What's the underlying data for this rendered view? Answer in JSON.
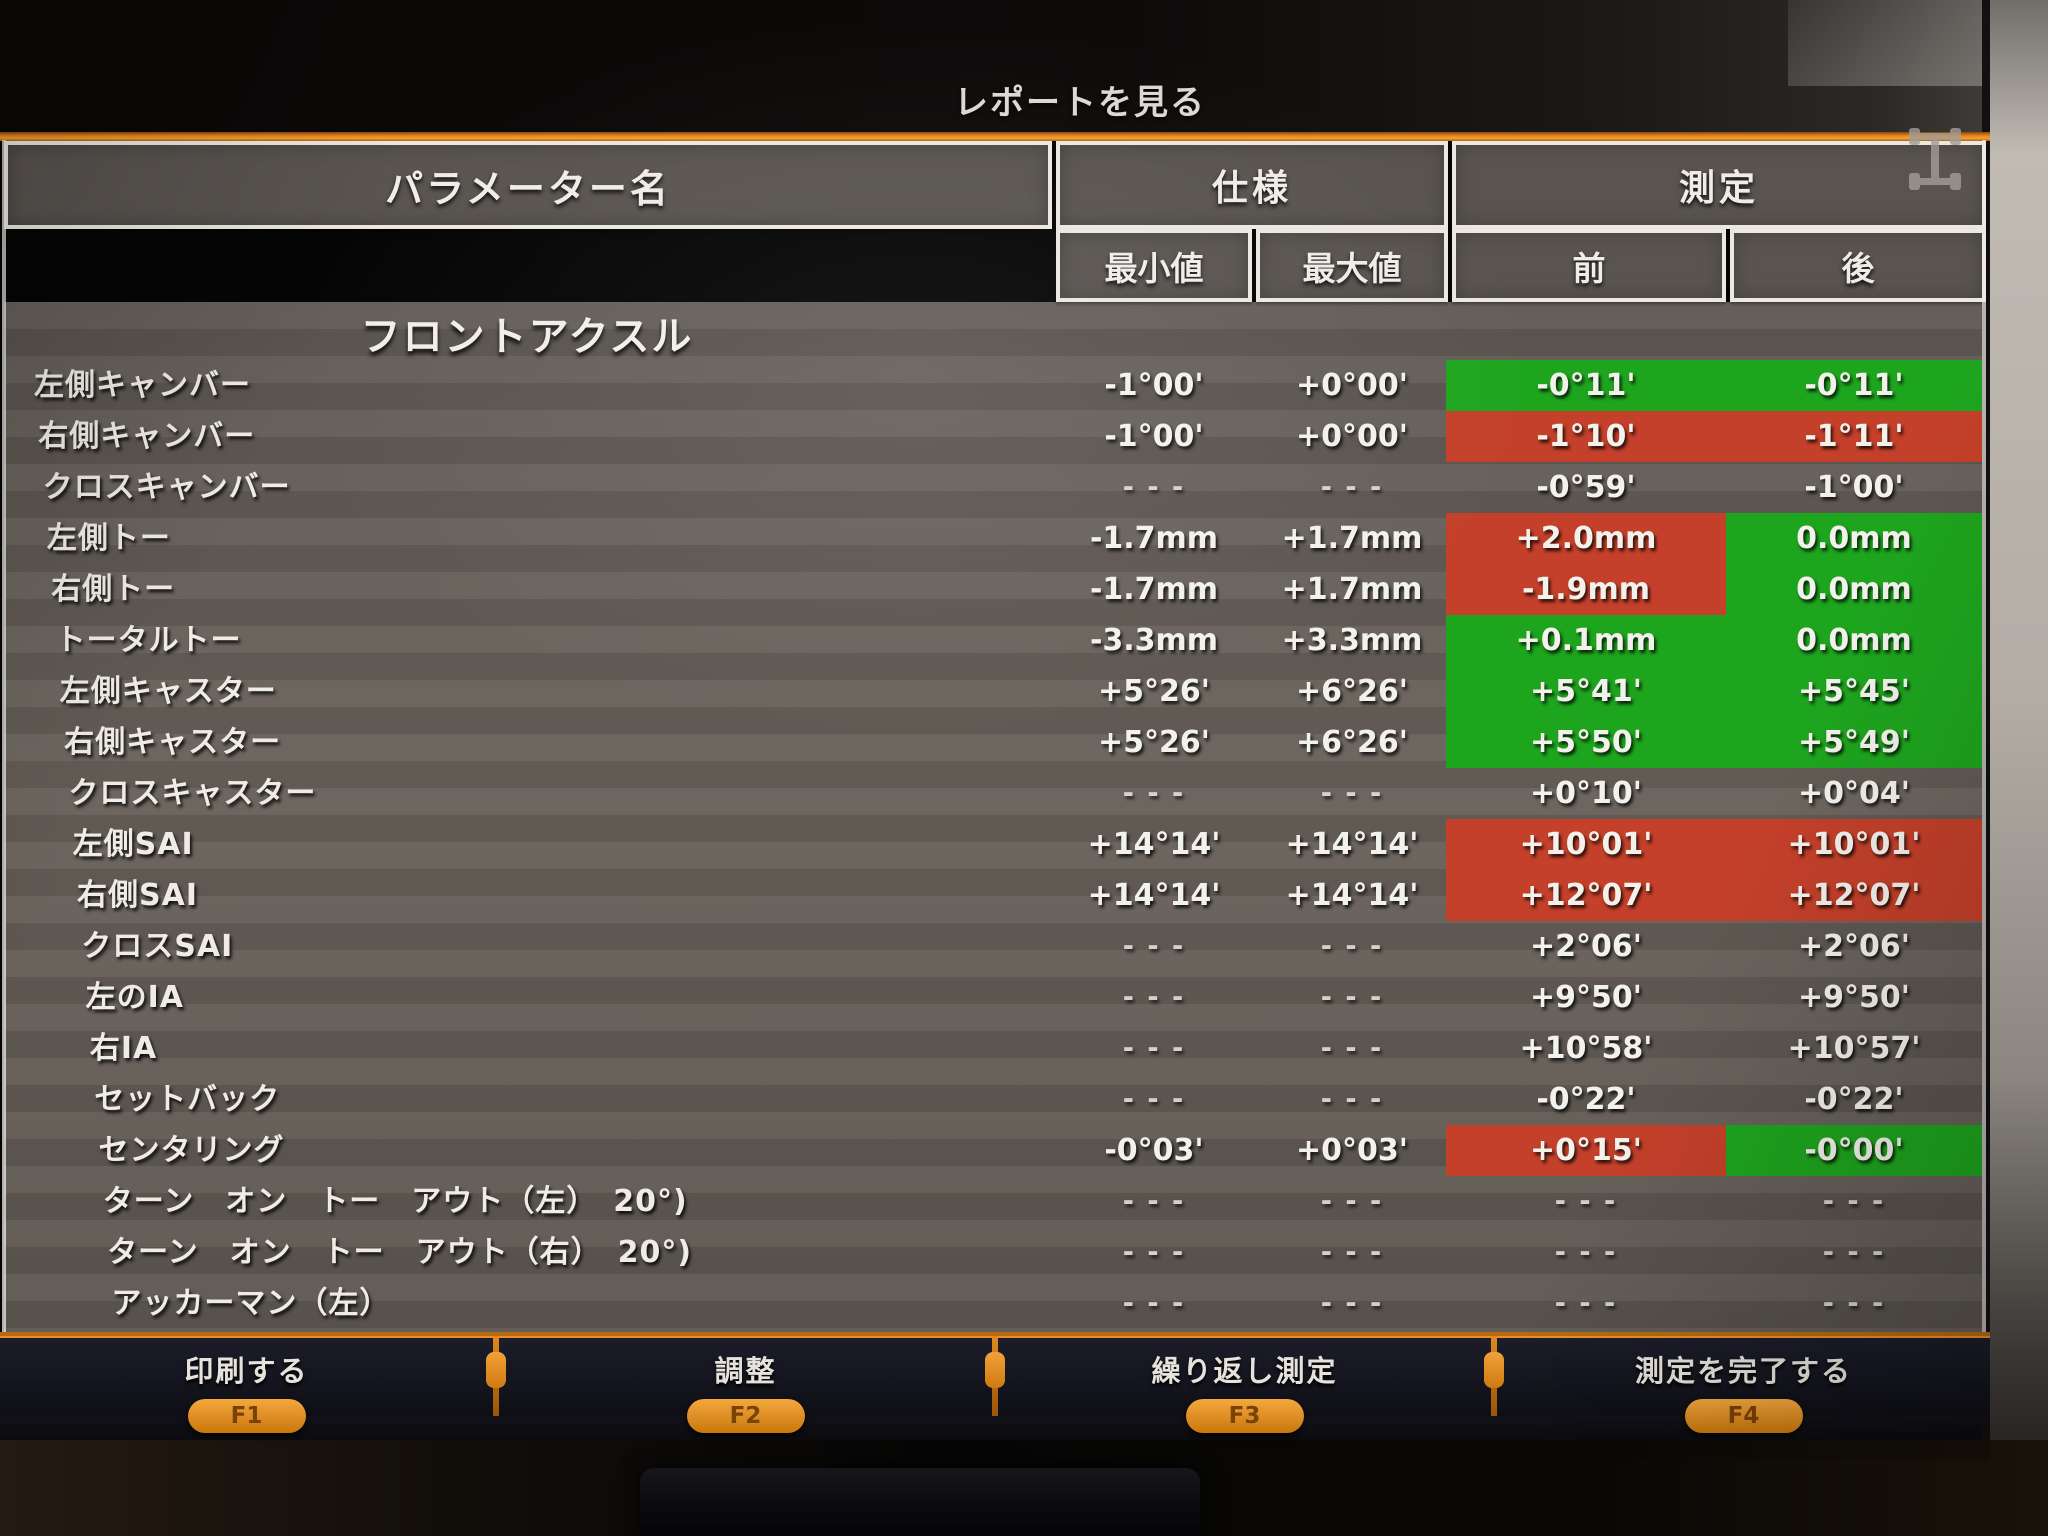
{
  "title": "レポートを見る",
  "icons": {
    "header_right": "axle-icon",
    "pointer": "mouse-cursor"
  },
  "colors": {
    "ok_green": "#1ea51e",
    "bad_red": "#c4402a",
    "accent_orange": "#e0851c"
  },
  "table": {
    "param_header": "パラメーター名",
    "spec_header": "仕様",
    "meas_header": "測定",
    "min_header": "最小値",
    "max_header": "最大値",
    "front_header": "前",
    "rear_header": "後",
    "section": "フロントアクスル",
    "rows": [
      {
        "label": "左側キャンバー",
        "min": "-1°00'",
        "max": "+0°00'",
        "front": "-0°11'",
        "rear": "-0°11'",
        "front_state": "ok",
        "rear_state": "ok"
      },
      {
        "label": "右側キャンバー",
        "min": "-1°00'",
        "max": "+0°00'",
        "front": "-1°10'",
        "rear": "-1°11'",
        "front_state": "bad",
        "rear_state": "bad"
      },
      {
        "label": "クロスキャンバー",
        "min": "- - -",
        "max": "- - -",
        "front": "-0°59'",
        "rear": "-1°00'",
        "front_state": "none",
        "rear_state": "none"
      },
      {
        "label": "左側トー",
        "min": "-1.7mm",
        "max": "+1.7mm",
        "front": "+2.0mm",
        "rear": "0.0mm",
        "front_state": "bad",
        "rear_state": "ok",
        "cursor": true
      },
      {
        "label": "右側トー",
        "min": "-1.7mm",
        "max": "+1.7mm",
        "front": "-1.9mm",
        "rear": "0.0mm",
        "front_state": "bad",
        "rear_state": "ok"
      },
      {
        "label": "トータルトー",
        "min": "-3.3mm",
        "max": "+3.3mm",
        "front": "+0.1mm",
        "rear": "0.0mm",
        "front_state": "ok",
        "rear_state": "ok"
      },
      {
        "label": "左側キャスター",
        "min": "+5°26'",
        "max": "+6°26'",
        "front": "+5°41'",
        "rear": "+5°45'",
        "front_state": "ok",
        "rear_state": "ok"
      },
      {
        "label": "右側キャスター",
        "min": "+5°26'",
        "max": "+6°26'",
        "front": "+5°50'",
        "rear": "+5°49'",
        "front_state": "ok",
        "rear_state": "ok"
      },
      {
        "label": "クロスキャスター",
        "min": "- - -",
        "max": "- - -",
        "front": "+0°10'",
        "rear": "+0°04'",
        "front_state": "none",
        "rear_state": "none"
      },
      {
        "label": "左側SAI",
        "min": "+14°14'",
        "max": "+14°14'",
        "front": "+10°01'",
        "rear": "+10°01'",
        "front_state": "bad",
        "rear_state": "bad"
      },
      {
        "label": "右側SAI",
        "min": "+14°14'",
        "max": "+14°14'",
        "front": "+12°07'",
        "rear": "+12°07'",
        "front_state": "bad",
        "rear_state": "bad"
      },
      {
        "label": "クロスSAI",
        "min": "- - -",
        "max": "- - -",
        "front": "+2°06'",
        "rear": "+2°06'",
        "front_state": "none",
        "rear_state": "none"
      },
      {
        "label": "左のIA",
        "min": "- - -",
        "max": "- - -",
        "front": "+9°50'",
        "rear": "+9°50'",
        "front_state": "none",
        "rear_state": "none"
      },
      {
        "label": "右IA",
        "min": "- - -",
        "max": "- - -",
        "front": "+10°58'",
        "rear": "+10°57'",
        "front_state": "none",
        "rear_state": "none"
      },
      {
        "label": "セットバック",
        "min": "- - -",
        "max": "- - -",
        "front": "-0°22'",
        "rear": "-0°22'",
        "front_state": "none",
        "rear_state": "none"
      },
      {
        "label": "センタリング",
        "min": "-0°03'",
        "max": "+0°03'",
        "front": "+0°15'",
        "rear": "-0°00'",
        "front_state": "bad",
        "rear_state": "ok"
      },
      {
        "label": "ターン　オン　トー　アウト（左）　20°)",
        "min": "- - -",
        "max": "- - -",
        "front": "- - -",
        "rear": "- - -",
        "front_state": "none",
        "rear_state": "none"
      },
      {
        "label": "ターン　オン　トー　アウト（右）　20°)",
        "min": "- - -",
        "max": "- - -",
        "front": "- - -",
        "rear": "- - -",
        "front_state": "none",
        "rear_state": "none"
      },
      {
        "label": "アッカーマン（左）",
        "min": "- - -",
        "max": "- - -",
        "front": "- - -",
        "rear": "- - -",
        "front_state": "none",
        "rear_state": "none"
      }
    ]
  },
  "function_bar": [
    {
      "label": "印刷する",
      "key": "F1"
    },
    {
      "label": "調整",
      "key": "F2"
    },
    {
      "label": "繰り返し測定",
      "key": "F3"
    },
    {
      "label": "測定を完了する",
      "key": "F4"
    }
  ]
}
